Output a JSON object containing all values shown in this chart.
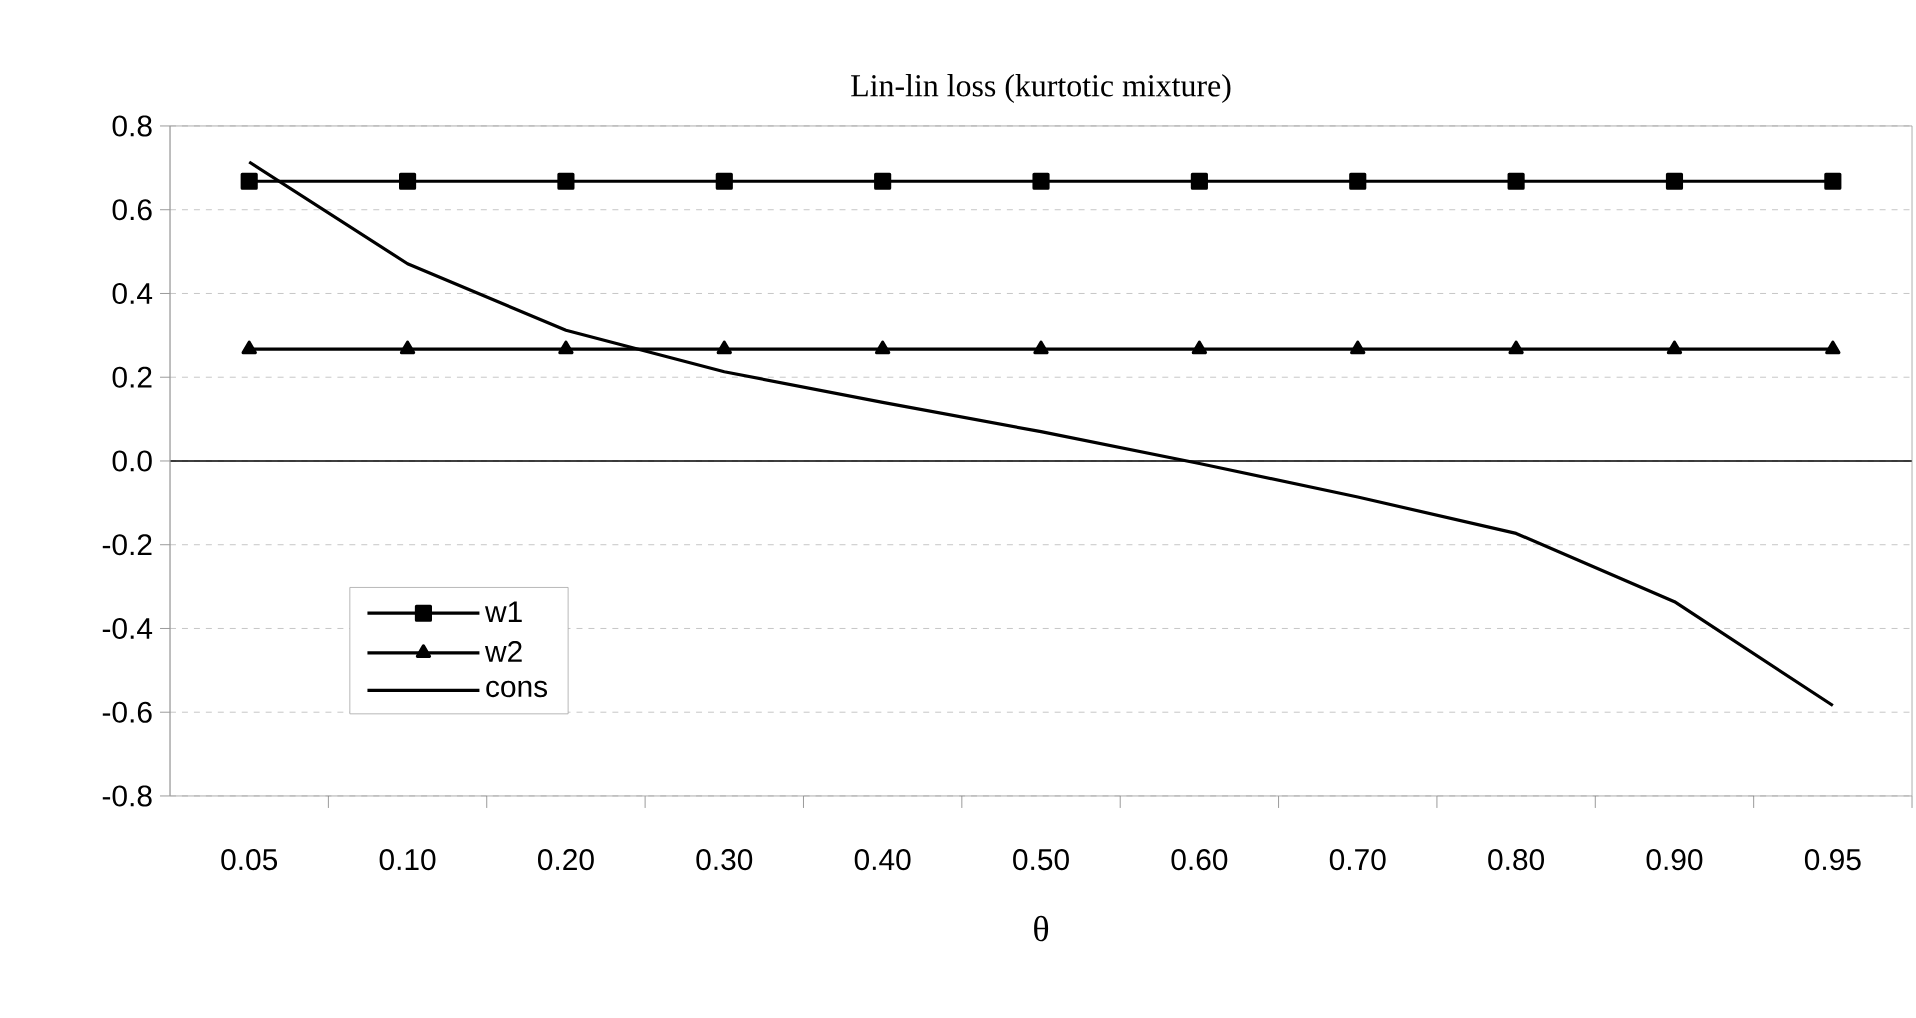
{
  "chart_data": {
    "type": "line",
    "title": "Lin-lin loss (kurtotic mixture)",
    "xlabel": "θ",
    "categories": [
      "0.05",
      "0.10",
      "0.20",
      "0.30",
      "0.40",
      "0.50",
      "0.60",
      "0.70",
      "0.80",
      "0.90",
      "0.95"
    ],
    "series": [
      {
        "name": "w1",
        "color": "#000000",
        "marker": "square",
        "values": [
          0.668,
          0.668,
          0.668,
          0.668,
          0.668,
          0.668,
          0.668,
          0.668,
          0.668,
          0.668,
          0.668
        ]
      },
      {
        "name": "w2",
        "color": "#000000",
        "marker": "triangle",
        "values": [
          0.267,
          0.267,
          0.267,
          0.267,
          0.267,
          0.267,
          0.267,
          0.267,
          0.267,
          0.267,
          0.267
        ]
      },
      {
        "name": "cons",
        "color": "#000000",
        "marker": "none",
        "values": [
          0.714,
          0.471,
          0.312,
          0.213,
          0.14,
          0.07,
          -0.006,
          -0.086,
          -0.173,
          -0.336,
          -0.584
        ]
      }
    ],
    "ylim": [
      -0.8,
      0.8
    ],
    "yticks": [
      {
        "value": -0.8,
        "label": "-0.8"
      },
      {
        "value": -0.6,
        "label": "-0.6"
      },
      {
        "value": -0.4,
        "label": "-0.4"
      },
      {
        "value": -0.2,
        "label": "-0.2"
      },
      {
        "value": 0,
        "label": "0.0"
      },
      {
        "value": 0.2,
        "label": "0.2"
      },
      {
        "value": 0.4,
        "label": "0.4"
      },
      {
        "value": 0.6,
        "label": "0.6"
      },
      {
        "value": 0.8,
        "label": "0.8"
      }
    ],
    "grid": "y",
    "legend": "bottom left"
  }
}
